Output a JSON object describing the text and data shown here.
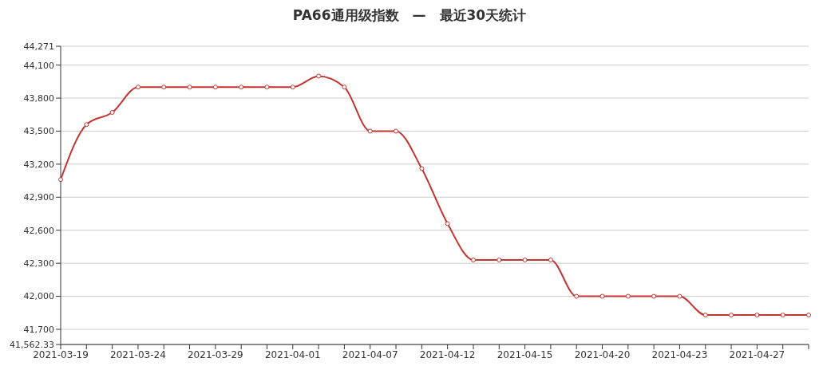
{
  "chart_data": {
    "type": "line",
    "title": "PA66通用级指数　—　最近30天统计",
    "categories": [
      "2021-03-19",
      null,
      null,
      "2021-03-24",
      null,
      null,
      "2021-03-29",
      null,
      null,
      "2021-04-01",
      null,
      null,
      "2021-04-07",
      null,
      null,
      "2021-04-12",
      null,
      null,
      "2021-04-15",
      null,
      null,
      "2021-04-20",
      null,
      null,
      "2021-04-23",
      null,
      null,
      "2021-04-27",
      null,
      null
    ],
    "series": [
      {
        "color": "#c23531",
        "values": [
          43060,
          43560,
          43670,
          43900,
          43900,
          43900,
          43900,
          43900,
          43900,
          43900,
          44000,
          43900,
          43500,
          43500,
          43160,
          42660,
          42330,
          42330,
          42330,
          42330,
          42000,
          42000,
          42000,
          42000,
          42000,
          41830,
          41830,
          41830,
          41830,
          41830
        ]
      }
    ],
    "ylim": [
      41562.33,
      44271
    ],
    "yticks": [
      {
        "value": 41562.33,
        "label": "41,562.33"
      },
      {
        "value": 41700,
        "label": "41,700"
      },
      {
        "value": 42000,
        "label": "42,000"
      },
      {
        "value": 42300,
        "label": "42,300"
      },
      {
        "value": 42600,
        "label": "42,600"
      },
      {
        "value": 42900,
        "label": "42,900"
      },
      {
        "value": 43200,
        "label": "43,200"
      },
      {
        "value": 43500,
        "label": "43,500"
      },
      {
        "value": 43800,
        "label": "43,800"
      },
      {
        "value": 44100,
        "label": "44,100"
      },
      {
        "value": 44271,
        "label": "44,271"
      }
    ],
    "grid": "y",
    "marker": "circle",
    "line_style": "solid"
  }
}
